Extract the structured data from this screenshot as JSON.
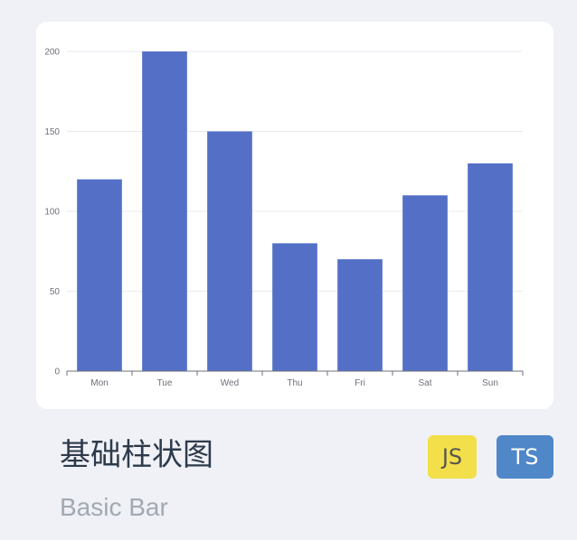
{
  "card": {
    "title": "基础柱状图",
    "subtitle": "Basic Bar",
    "badges": {
      "js": "JS",
      "ts": "TS"
    }
  },
  "chart_data": {
    "type": "bar",
    "categories": [
      "Mon",
      "Tue",
      "Wed",
      "Thu",
      "Fri",
      "Sat",
      "Sun"
    ],
    "values": [
      120,
      200,
      150,
      80,
      70,
      110,
      130
    ],
    "title": "",
    "xlabel": "",
    "ylabel": "",
    "ylim": [
      0,
      200
    ],
    "yticks": [
      0,
      50,
      100,
      150,
      200
    ],
    "grid": true,
    "colors": {
      "bar": "#5470c6",
      "grid": "#e9ebf0",
      "axis": "#6e7079",
      "label": "#6e7079"
    }
  }
}
